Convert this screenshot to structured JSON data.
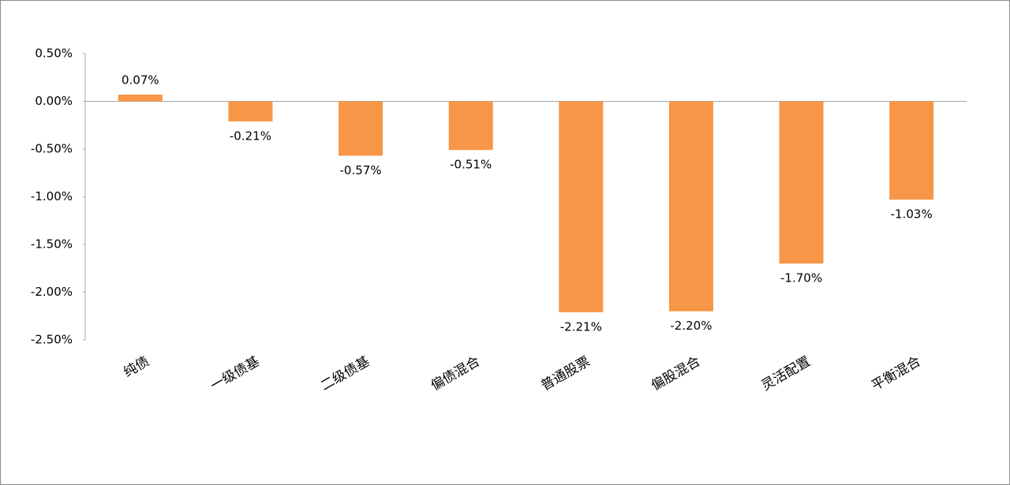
{
  "chart_data": {
    "type": "bar",
    "categories": [
      "纯债",
      "一级债基",
      "二级债基",
      "偏债混合",
      "普通股票",
      "偏股混合",
      "灵活配置",
      "平衡混合"
    ],
    "values": [
      0.07,
      -0.21,
      -0.57,
      -0.51,
      -2.21,
      -2.2,
      -1.7,
      -1.03
    ],
    "value_labels": [
      "0.07%",
      "-0.21%",
      "-0.57%",
      "-0.51%",
      "-2.21%",
      "-2.20%",
      "-1.70%",
      "-1.03%"
    ],
    "color": "#f79646",
    "ylim": [
      -2.5,
      0.5
    ],
    "yticks": [
      {
        "value": 0.5,
        "label": "0.50%"
      },
      {
        "value": 0,
        "label": "0.00%"
      },
      {
        "value": -0.5,
        "label": "-0.50%"
      },
      {
        "value": -1,
        "label": "-1.00%"
      },
      {
        "value": -1.5,
        "label": "-1.50%"
      },
      {
        "value": -2,
        "label": "-2.00%"
      },
      {
        "value": -2.5,
        "label": "-2.50%"
      }
    ],
    "grid": false
  }
}
